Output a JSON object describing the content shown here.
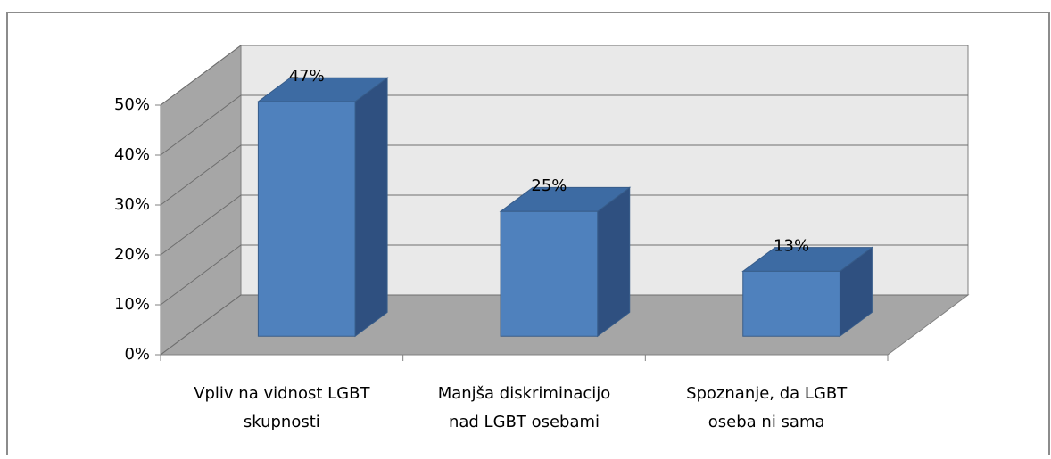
{
  "chart_data": {
    "type": "bar3d",
    "categories": [
      [
        "Vpliv na vidnost LGBT",
        "skupnosti"
      ],
      [
        "Manjša diskriminacijo",
        "nad LGBT osebami"
      ],
      [
        "Spoznanje, da LGBT",
        "oseba ni sama"
      ]
    ],
    "values": [
      47,
      25,
      13
    ],
    "value_labels": [
      "47%",
      "25%",
      "13%"
    ],
    "color": "#4f81bd",
    "ylim": [
      0,
      50
    ],
    "yticks": [
      {
        "value": 0,
        "label": "0%"
      },
      {
        "value": 10,
        "label": "10%"
      },
      {
        "value": 20,
        "label": "20%"
      },
      {
        "value": 30,
        "label": "30%"
      },
      {
        "value": 40,
        "label": "40%"
      },
      {
        "value": 50,
        "label": "50%"
      }
    ],
    "grid": true
  }
}
